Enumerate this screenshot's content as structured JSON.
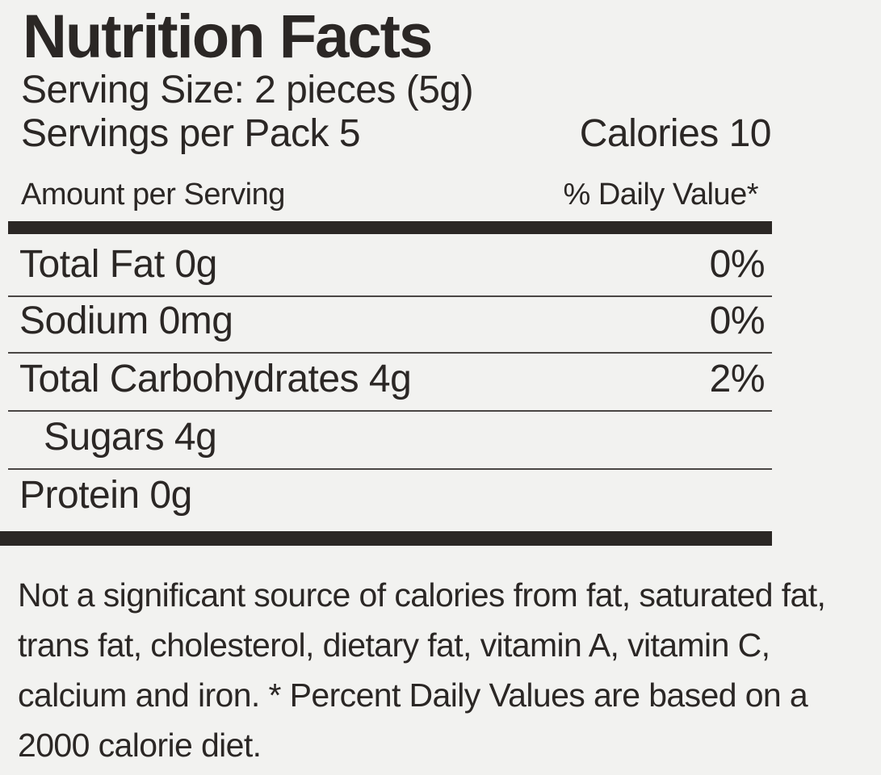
{
  "header": {
    "title": "Nutrition Facts",
    "serving_size": "Serving Size: 2 pieces (5g)",
    "servings_per_pack": "Servings per Pack 5",
    "calories": "Calories 10",
    "amount_per_serving": "Amount per Serving",
    "daily_value_header": "% Daily Value*"
  },
  "rows": [
    {
      "label": "Total Fat 0g",
      "dv": "0%"
    },
    {
      "label": "Sodium 0mg",
      "dv": "0%"
    },
    {
      "label": "Total Carbohydrates 4g",
      "dv": "2%"
    },
    {
      "label": "Sugars 4g"
    },
    {
      "label": "Protein 0g"
    }
  ],
  "footnote": "Not a significant source of calories from fat, saturated fat, trans fat, cholesterol, dietary fat, vitamin A, vitamin C, calcium and iron. * Percent Daily Values are based on a 2000 calorie diet."
}
